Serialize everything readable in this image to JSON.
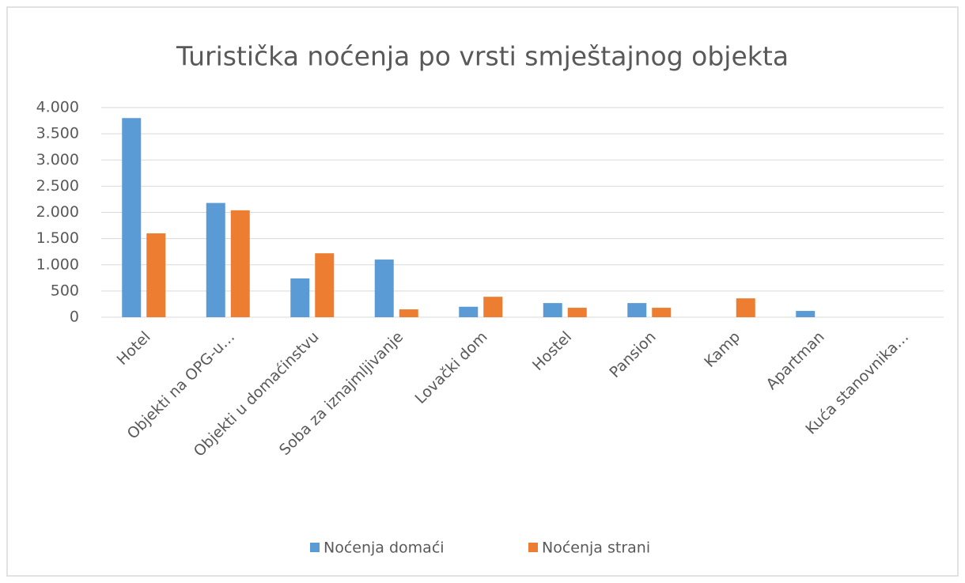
{
  "chart_data": {
    "type": "bar",
    "title": "Turistička noćenja po vrsti smještajnog objekta",
    "categories": [
      "Hotel",
      "Objekti na OPG-u…",
      "Objekti u domaćinstvu",
      "Soba za iznajmljivanje",
      "Lovački dom",
      "Hostel",
      "Pansion",
      "Kamp",
      "Apartman",
      "Kuća stanovnika…"
    ],
    "series": [
      {
        "name": "Noćenja domaći",
        "color": "#5b9bd5",
        "values": [
          3800,
          2180,
          740,
          1100,
          200,
          270,
          270,
          0,
          120,
          0
        ]
      },
      {
        "name": "Noćenja strani",
        "color": "#ed7d31",
        "values": [
          1600,
          2040,
          1220,
          150,
          390,
          180,
          180,
          360,
          0,
          0
        ]
      }
    ],
    "ylim": [
      0,
      4000
    ],
    "yticks": [
      0,
      500,
      {
        "value": 1000,
        "label": "1.000"
      },
      {
        "value": 1500,
        "label": "1.500"
      },
      {
        "value": 2000,
        "label": "2.000"
      },
      {
        "value": 2500,
        "label": "2.500"
      },
      {
        "value": 3000,
        "label": "3.000"
      },
      {
        "value": 3500,
        "label": "3.500"
      },
      {
        "value": 4000,
        "label": "4.000"
      }
    ],
    "grid": true,
    "legend": "bottom"
  }
}
